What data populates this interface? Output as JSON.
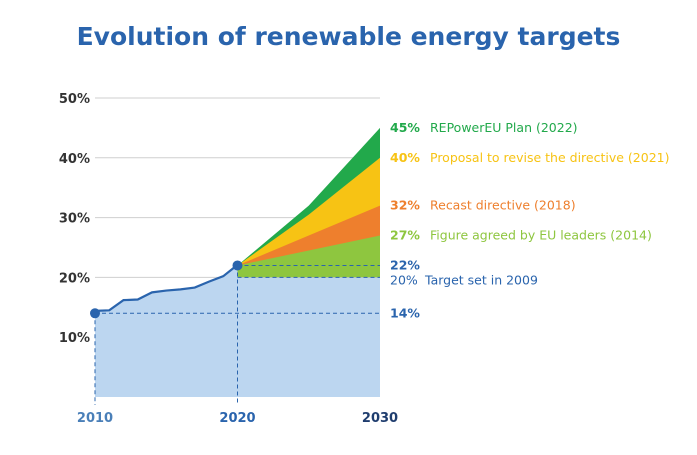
{
  "colors": {
    "title": "#2a64ad",
    "history_line": "#2a64ad",
    "history_fill": "#bcd6f0",
    "green_2022": "#22a94b",
    "yellow_2021": "#f7c314",
    "orange_2018": "#ee7f2d",
    "lightgreen_2014": "#8ec63f",
    "axis_2010": "#4a7fb8",
    "axis_2030": "#1f3d6e"
  },
  "chart_data": {
    "type": "area",
    "title": "Evolution of renewable energy targets",
    "xlabel": "",
    "ylabel": "",
    "xlim": [
      2010,
      2030
    ],
    "ylim": [
      0,
      50
    ],
    "y_ticks": [
      {
        "value": 10,
        "label": "10%"
      },
      {
        "value": 20,
        "label": "20%"
      },
      {
        "value": 30,
        "label": "30%"
      },
      {
        "value": 40,
        "label": "40%"
      },
      {
        "value": 50,
        "label": "50%"
      }
    ],
    "x_ticks": [
      {
        "value": 2010,
        "label": "2010"
      },
      {
        "value": 2020,
        "label": "2020"
      },
      {
        "value": 2030,
        "label": "2030"
      }
    ],
    "grid": true,
    "history": {
      "x": [
        2010,
        2011,
        2012,
        2013,
        2014,
        2015,
        2016,
        2017,
        2018,
        2019,
        2020
      ],
      "values": [
        14.4,
        14.5,
        16.2,
        16.3,
        17.5,
        17.8,
        18.0,
        18.3,
        19.3,
        20.2,
        22.1
      ]
    },
    "start_point": {
      "x": 2010,
      "value": 14
    },
    "mid_point": {
      "x": 2020,
      "value": 22
    },
    "target_lines": [
      {
        "value": 20,
        "label_value": "20%",
        "label_text": "Target set in 2009"
      },
      {
        "value": 22,
        "label_value": "22%"
      },
      {
        "value": 14,
        "label_value": "14%"
      }
    ],
    "series": [
      {
        "name": "REPowerEU Plan",
        "year": "(2022)",
        "label_value": "45%",
        "color_key": "green_2022",
        "x": [
          2020,
          2025,
          2030
        ],
        "values": [
          22,
          32,
          45
        ]
      },
      {
        "name": "Proposal to revise the directive",
        "year": "(2021)",
        "label_value": "40%",
        "color_key": "yellow_2021",
        "x": [
          2020,
          2025,
          2030
        ],
        "values": [
          22,
          30.5,
          40
        ]
      },
      {
        "name": "Recast directive",
        "year": "(2018)",
        "label_value": "32%",
        "color_key": "orange_2018",
        "x": [
          2020,
          2025,
          2030
        ],
        "values": [
          22,
          27,
          32
        ]
      },
      {
        "name": "Figure agreed by EU leaders",
        "year": "(2014)",
        "label_value": "27%",
        "color_key": "lightgreen_2014",
        "x": [
          2020,
          2025,
          2030
        ],
        "values": [
          22,
          24.5,
          27
        ]
      }
    ]
  }
}
